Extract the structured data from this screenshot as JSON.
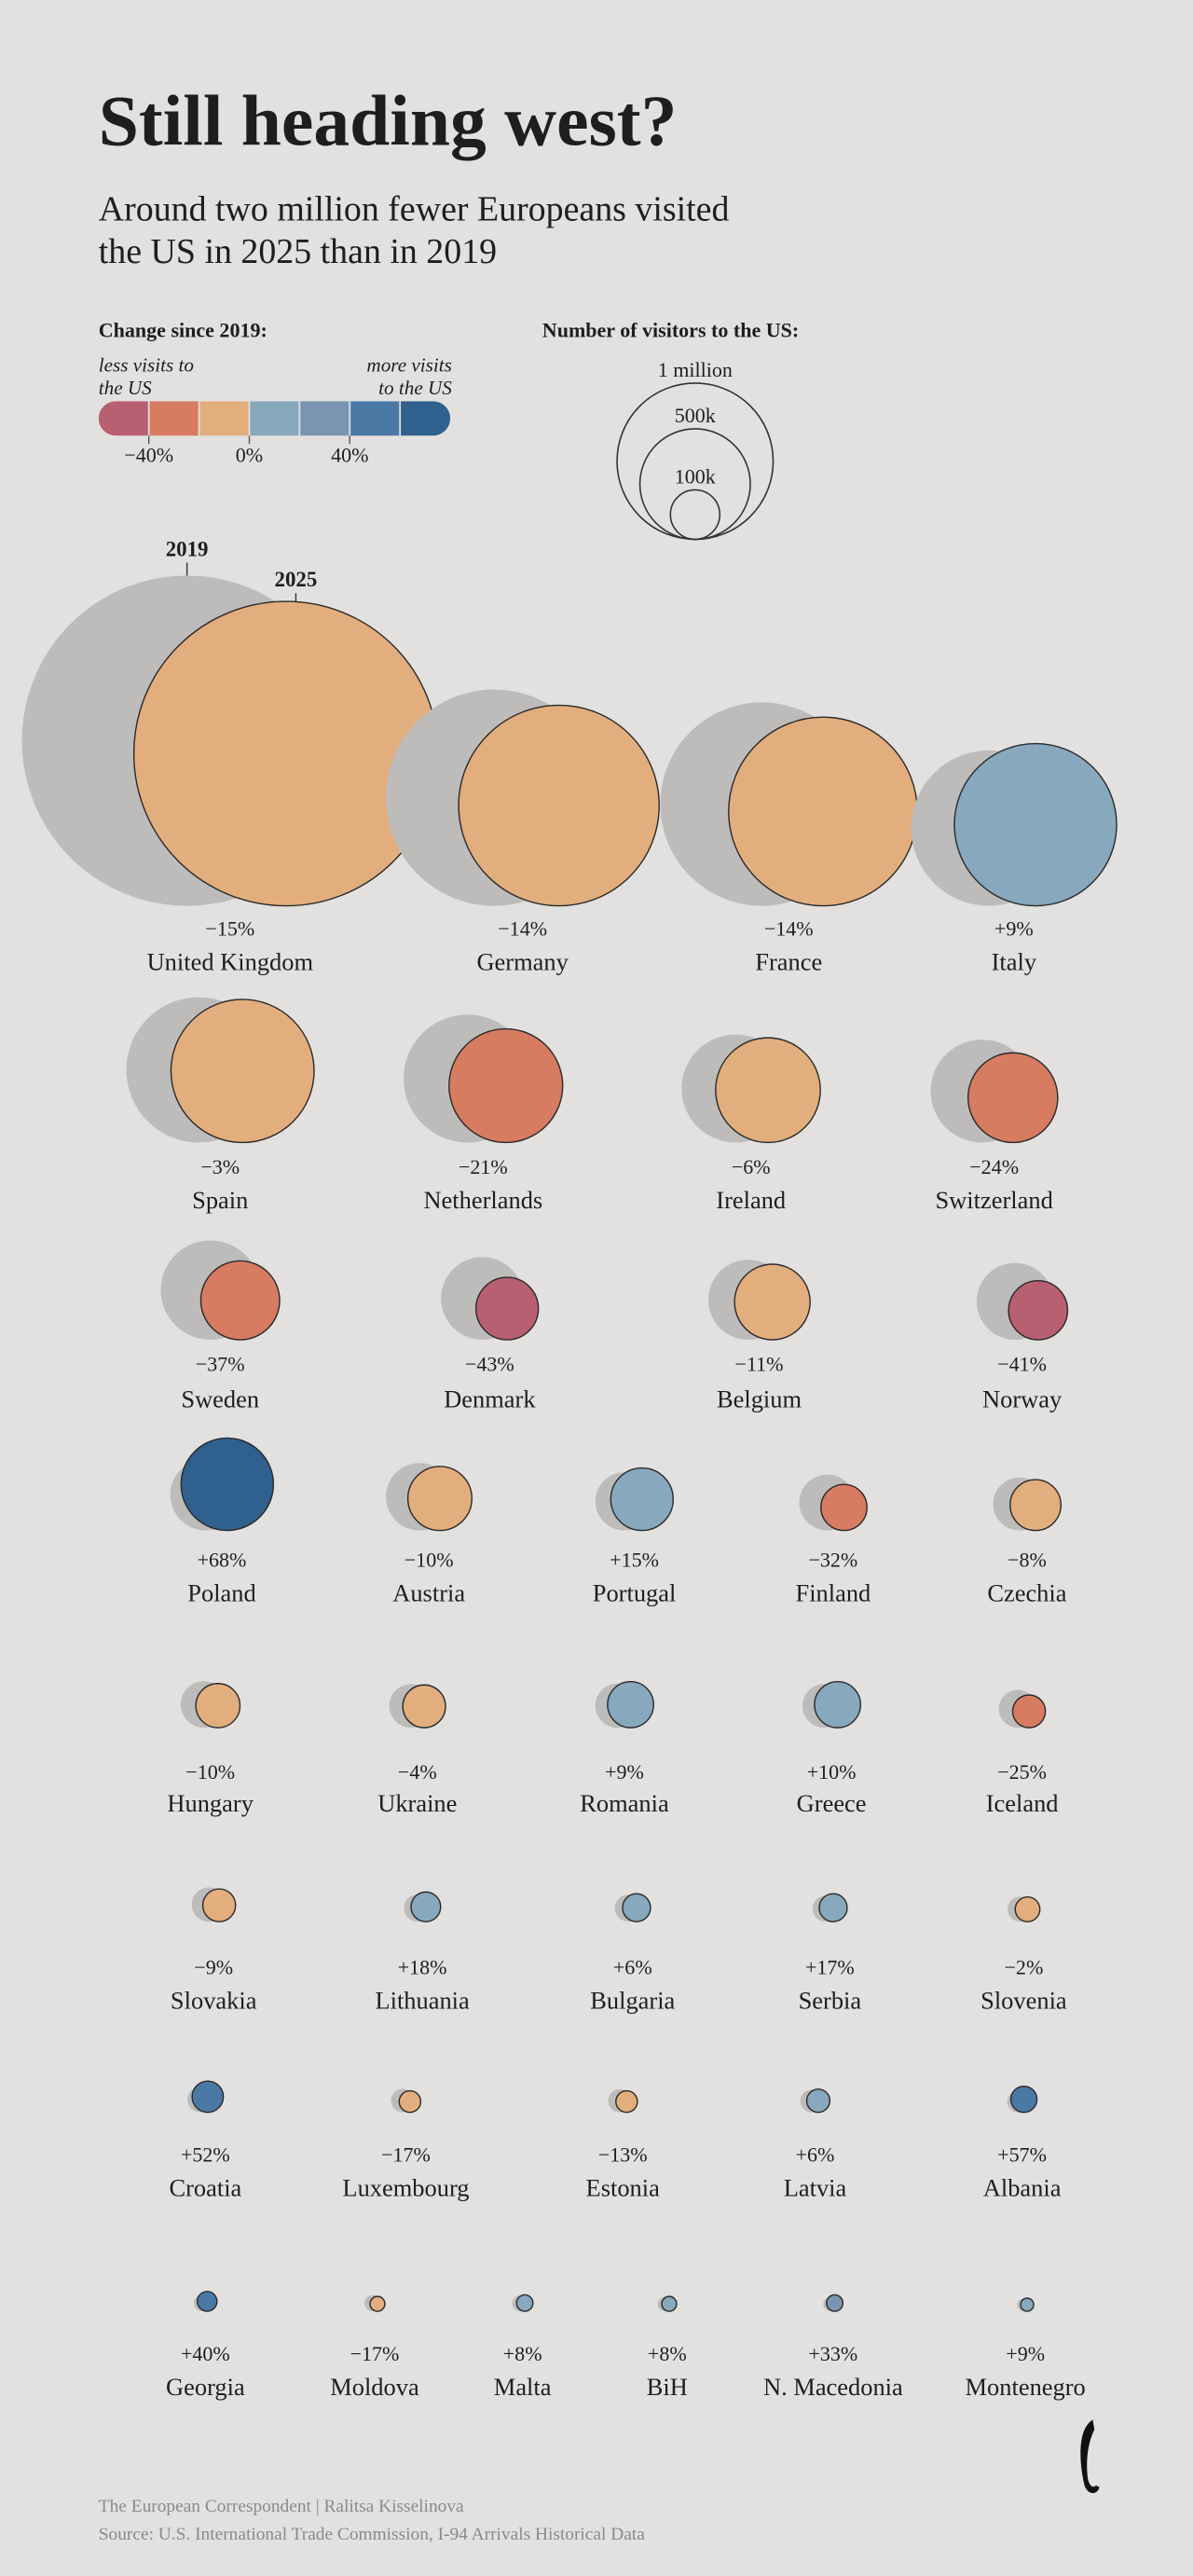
{
  "chart_data": {
    "type": "bubble",
    "title": "Still heading west?",
    "subtitle": [
      "Around two million fewer Europeans visited",
      "the US in 2025 than in 2019"
    ],
    "color_legend": {
      "title": "Change since 2019:",
      "left_note": [
        "less visits to",
        "the US"
      ],
      "right_note": [
        "more visits",
        "to the US"
      ],
      "colors": [
        "#b85f72",
        "#d77b61",
        "#e3ae7d",
        "#87a8bd",
        "#7a95b1",
        "#4a79a6",
        "#30608e"
      ],
      "lim": [
        -60,
        80
      ],
      "ticks": [
        {
          "value": -40,
          "label": "−40%"
        },
        {
          "value": 0,
          "label": "0%"
        },
        {
          "value": 40,
          "label": "40%"
        }
      ]
    },
    "size_legend": {
      "title": "Number of visitors to the US:",
      "ticks": [
        {
          "value": 1000000,
          "label": "1 million"
        },
        {
          "value": 500000,
          "label": "500k"
        },
        {
          "value": 100000,
          "label": "100k"
        }
      ]
    },
    "series_names": [
      "2019",
      "2025"
    ],
    "series_colors": [
      "#bdbcbb",
      null
    ],
    "categories": [
      "United Kingdom",
      "Germany",
      "France",
      "Italy",
      "Spain",
      "Netherlands",
      "Ireland",
      "Switzerland",
      "Sweden",
      "Denmark",
      "Belgium",
      "Norway",
      "Poland",
      "Austria",
      "Portugal",
      "Finland",
      "Czechia",
      "Hungary",
      "Ukraine",
      "Romania",
      "Greece",
      "Iceland",
      "Slovakia",
      "Lithuania",
      "Bulgaria",
      "Serbia",
      "Slovenia",
      "Croatia",
      "Luxembourg",
      "Estonia",
      "Latvia",
      "Albania",
      "Georgia",
      "Moldova",
      "Malta",
      "BiH",
      "N. Macedonia",
      "Montenegro"
    ],
    "values": [
      -15,
      -14,
      -14,
      9,
      -3,
      -21,
      -6,
      -24,
      -37,
      -43,
      -11,
      -41,
      68,
      -10,
      15,
      -32,
      -8,
      -10,
      -4,
      9,
      10,
      -25,
      -9,
      18,
      6,
      17,
      -2,
      52,
      -17,
      -13,
      6,
      57,
      40,
      -17,
      8,
      8,
      33,
      9
    ],
    "value_labels": [
      "−15%",
      "−14%",
      "−14%",
      "+9%",
      "−3%",
      "−21%",
      "−6%",
      "−24%",
      "−37%",
      "−43%",
      "−11%",
      "−41%",
      "+68%",
      "−10%",
      "+15%",
      "−32%",
      "−8%",
      "−10%",
      "−4%",
      "+9%",
      "+10%",
      "−25%",
      "−9%",
      "+18%",
      "+6%",
      "+17%",
      "−2%",
      "+52%",
      "−17%",
      "−13%",
      "+6%",
      "+57%",
      "+40%",
      "−17%",
      "+8%",
      "+8%",
      "+33%",
      "+9%"
    ],
    "visitors_2025": [
      3800000,
      1650000,
      1460000,
      1080000,
      840000,
      530000,
      450000,
      330000,
      255000,
      160000,
      234000,
      143000,
      350000,
      168000,
      160000,
      87000,
      106000,
      80000,
      75000,
      87000,
      87000,
      44000,
      44000,
      36000,
      32000,
      32000,
      25000,
      40000,
      19000,
      19000,
      22000,
      28000,
      16000,
      9000,
      11000,
      9000,
      11000,
      7000
    ],
    "colors": [
      "#e3ae7d",
      "#e3ae7d",
      "#e3ae7d",
      "#87a8bd",
      "#e3ae7d",
      "#d77b61",
      "#e3ae7d",
      "#d77b61",
      "#d77b61",
      "#b85f72",
      "#e3ae7d",
      "#b85f72",
      "#30608e",
      "#e3ae7d",
      "#87a8bd",
      "#d77b61",
      "#e3ae7d",
      "#e3ae7d",
      "#e3ae7d",
      "#87a8bd",
      "#87a8bd",
      "#d77b61",
      "#e3ae7d",
      "#87a8bd",
      "#87a8bd",
      "#87a8bd",
      "#e3ae7d",
      "#4a79a6",
      "#e3ae7d",
      "#e3ae7d",
      "#87a8bd",
      "#4a79a6",
      "#4a79a6",
      "#e3ae7d",
      "#87a8bd",
      "#87a8bd",
      "#7a95b1",
      "#87a8bd"
    ],
    "footer": [
      "The European Correspondent | Ralitsa Kisselinova",
      "Source:  U.S. International Trade Commission, I-94 Arrivals Historical Data"
    ]
  }
}
